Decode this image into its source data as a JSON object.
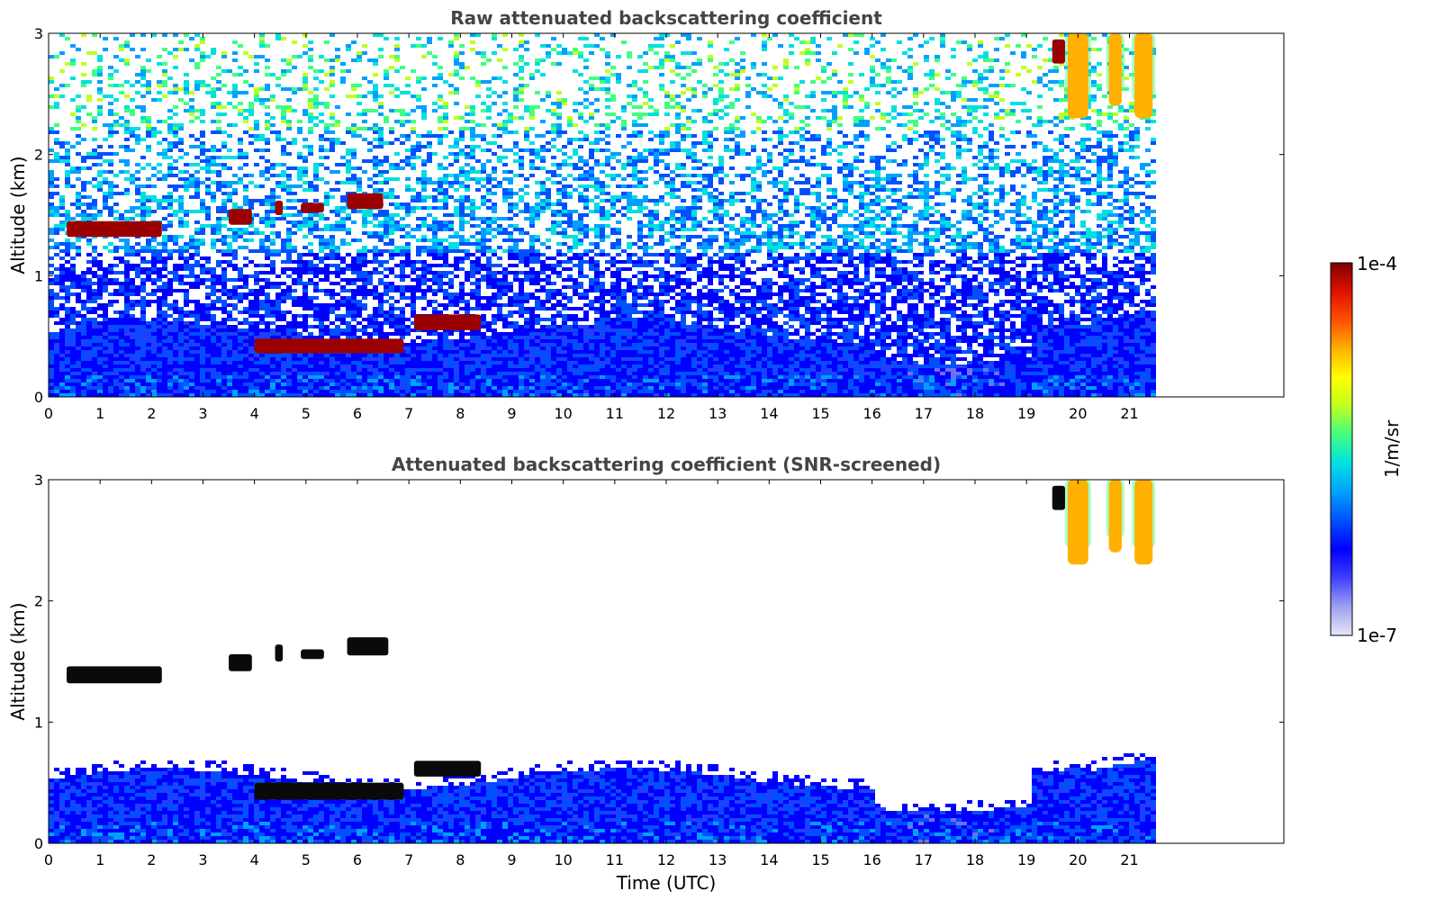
{
  "chart_data": [
    {
      "type": "heatmap",
      "title": "Raw attenuated backscattering coefficient",
      "xlabel": "",
      "ylabel": "Altitude (km)",
      "xlim": [
        0,
        24
      ],
      "ylim": [
        0,
        3
      ],
      "x_ticks": [
        "0",
        "1",
        "2",
        "3",
        "4",
        "5",
        "6",
        "7",
        "8",
        "9",
        "10",
        "11",
        "12",
        "13",
        "14",
        "15",
        "16",
        "17",
        "18",
        "19",
        "20",
        "21"
      ],
      "y_ticks": [
        "0",
        "1",
        "2",
        "3"
      ],
      "data_end_time": 21.45,
      "features": [
        {
          "kind": "boundary_layer",
          "x": [
            0,
            21.45
          ],
          "y": [
            0,
            0.6
          ],
          "level": "low"
        },
        {
          "kind": "noise",
          "x": [
            0,
            21.45
          ],
          "y": [
            0.6,
            3
          ],
          "level": "mixed"
        },
        {
          "kind": "cloud",
          "x": [
            0.35,
            2.2
          ],
          "y": [
            1.32,
            1.45
          ],
          "level": "high"
        },
        {
          "kind": "cloud",
          "x": [
            3.5,
            3.95
          ],
          "y": [
            1.42,
            1.55
          ],
          "level": "high"
        },
        {
          "kind": "cloud",
          "x": [
            4.4,
            4.55
          ],
          "y": [
            1.5,
            1.62
          ],
          "level": "high"
        },
        {
          "kind": "cloud",
          "x": [
            4.9,
            5.35
          ],
          "y": [
            1.52,
            1.6
          ],
          "level": "high"
        },
        {
          "kind": "cloud",
          "x": [
            5.8,
            6.5
          ],
          "y": [
            1.55,
            1.68
          ],
          "level": "high"
        },
        {
          "kind": "cloud",
          "x": [
            4.0,
            6.9
          ],
          "y": [
            0.36,
            0.48
          ],
          "level": "high"
        },
        {
          "kind": "cloud",
          "x": [
            7.1,
            8.4
          ],
          "y": [
            0.55,
            0.68
          ],
          "level": "high"
        },
        {
          "kind": "cloud",
          "x": [
            19.5,
            19.75
          ],
          "y": [
            2.75,
            2.95
          ],
          "level": "high"
        },
        {
          "kind": "precip",
          "x": [
            19.8,
            20.2
          ],
          "y": [
            2.3,
            3
          ],
          "level": "mid"
        },
        {
          "kind": "precip",
          "x": [
            20.6,
            20.85
          ],
          "y": [
            2.4,
            3
          ],
          "level": "mid"
        },
        {
          "kind": "precip",
          "x": [
            21.1,
            21.45
          ],
          "y": [
            2.3,
            3
          ],
          "level": "mid"
        }
      ]
    },
    {
      "type": "heatmap",
      "title": "Attenuated backscattering coefficient (SNR-screened)",
      "xlabel": "Time (UTC)",
      "ylabel": "Altitude (km)",
      "xlim": [
        0,
        24
      ],
      "ylim": [
        0,
        3
      ],
      "x_ticks": [
        "0",
        "1",
        "2",
        "3",
        "4",
        "5",
        "6",
        "7",
        "8",
        "9",
        "10",
        "11",
        "12",
        "13",
        "14",
        "15",
        "16",
        "17",
        "18",
        "19",
        "20",
        "21"
      ],
      "y_ticks": [
        "0",
        "1",
        "2",
        "3"
      ],
      "data_end_time": 21.45,
      "features": [
        {
          "kind": "boundary_layer",
          "x": [
            0,
            21.45
          ],
          "y": [
            0,
            0.62
          ],
          "level": "low"
        },
        {
          "kind": "cloud",
          "x": [
            0.35,
            2.2
          ],
          "y": [
            1.32,
            1.46
          ],
          "level": "saturated"
        },
        {
          "kind": "cloud",
          "x": [
            3.5,
            3.95
          ],
          "y": [
            1.42,
            1.56
          ],
          "level": "saturated"
        },
        {
          "kind": "cloud",
          "x": [
            4.4,
            4.55
          ],
          "y": [
            1.5,
            1.64
          ],
          "level": "saturated"
        },
        {
          "kind": "cloud",
          "x": [
            4.9,
            5.35
          ],
          "y": [
            1.52,
            1.6
          ],
          "level": "saturated"
        },
        {
          "kind": "cloud",
          "x": [
            5.8,
            6.6
          ],
          "y": [
            1.55,
            1.7
          ],
          "level": "saturated"
        },
        {
          "kind": "cloud",
          "x": [
            4.0,
            6.9
          ],
          "y": [
            0.36,
            0.5
          ],
          "level": "saturated"
        },
        {
          "kind": "cloud",
          "x": [
            7.1,
            8.4
          ],
          "y": [
            0.55,
            0.68
          ],
          "level": "saturated"
        },
        {
          "kind": "cloud",
          "x": [
            19.5,
            19.75
          ],
          "y": [
            2.75,
            2.95
          ],
          "level": "saturated"
        },
        {
          "kind": "precip",
          "x": [
            19.8,
            20.2
          ],
          "y": [
            2.3,
            3
          ],
          "level": "mid"
        },
        {
          "kind": "precip",
          "x": [
            20.6,
            20.85
          ],
          "y": [
            2.4,
            3
          ],
          "level": "mid"
        },
        {
          "kind": "precip",
          "x": [
            21.1,
            21.45
          ],
          "y": [
            2.3,
            3
          ],
          "level": "mid"
        }
      ]
    }
  ],
  "colorbar": {
    "label": "1/m/sr",
    "max_label": "1e-4",
    "min_label": "1e-7",
    "min_value": 1e-07,
    "max_value": 0.0001,
    "scale": "log",
    "colormap": [
      "#e6e6fa",
      "#9f9ff0",
      "#4040ff",
      "#0000ff",
      "#0050ff",
      "#00a0ff",
      "#00e0e0",
      "#40ff80",
      "#c0ff20",
      "#ffff00",
      "#ffb000",
      "#ff5000",
      "#e01000",
      "#800000"
    ]
  }
}
